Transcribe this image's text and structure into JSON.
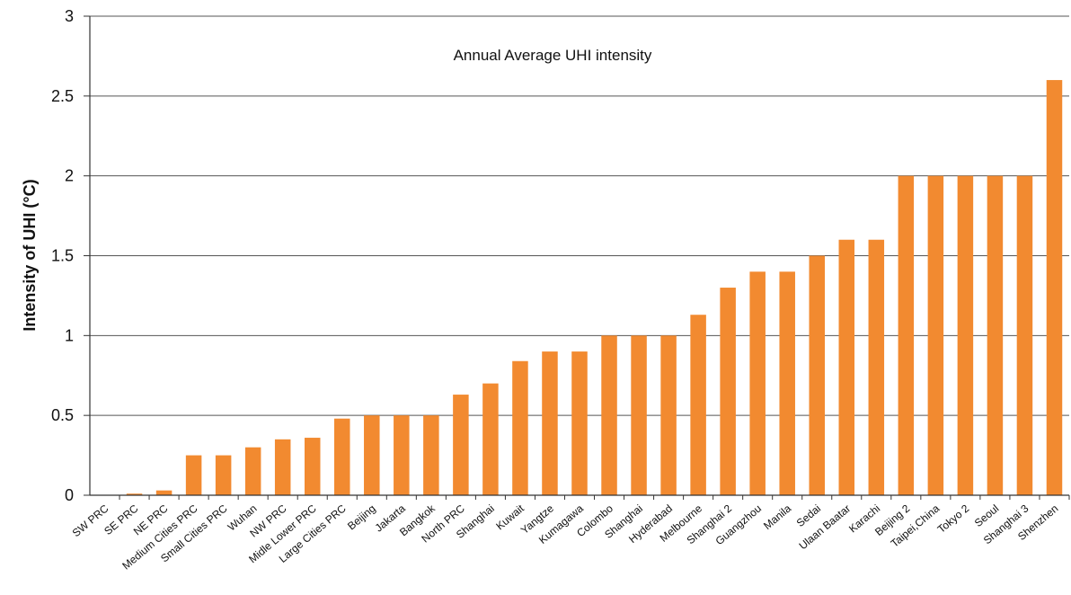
{
  "chart_data": {
    "type": "bar",
    "title": "Annual Average UHI intensity",
    "xlabel": "",
    "ylabel": "Intensity of UHI (°C)",
    "ylim": [
      0,
      3
    ],
    "yticks": [
      "0",
      "0.5",
      "1",
      "1.5",
      "2",
      "2.5",
      "3"
    ],
    "grid": true,
    "bar_color": "#F28A30",
    "categories": [
      "SW PRC",
      "SE PRC",
      "NE PRC",
      "Medium Cities PRC",
      "Small Cities PRC",
      "Wuhan",
      "NW PRC",
      "Midle Lower PRC",
      "Large Cities PRC",
      "Beijing",
      "Jakarta",
      "Bangkok",
      "North PRC",
      "Shanghai",
      "Kuwait",
      "Yangtze",
      "Kumagawa",
      "Colombo",
      "Shanghai",
      "Hyderabad",
      "Melbourne",
      "Shanghai 2",
      "Guangzhou",
      "Manila",
      "Sedai",
      "Ulaan Baatar",
      "Karachi",
      "Beijing 2",
      "Taipei,China",
      "Tokyo 2",
      "Seoul",
      "Shanghai 3",
      "Shenzhen"
    ],
    "values": [
      0,
      0.01,
      0.03,
      0.25,
      0.25,
      0.3,
      0.35,
      0.36,
      0.48,
      0.5,
      0.5,
      0.5,
      0.63,
      0.7,
      0.84,
      0.9,
      0.9,
      1.0,
      1.0,
      1.0,
      1.13,
      1.3,
      1.4,
      1.4,
      1.5,
      1.6,
      1.6,
      2.0,
      2.0,
      2.0,
      2.0,
      2.0,
      2.6
    ]
  }
}
